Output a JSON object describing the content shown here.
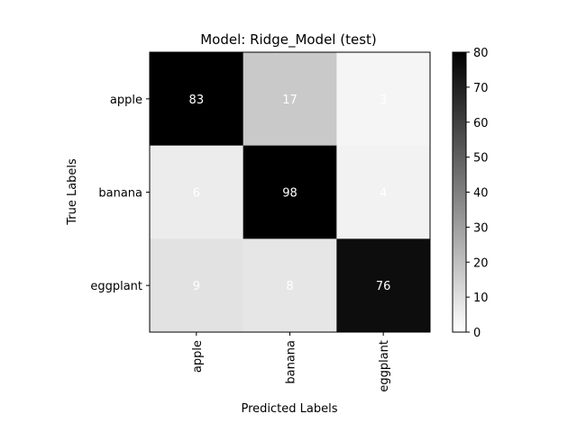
{
  "chart_data": {
    "type": "heatmap",
    "title": "Model: Ridge_Model (test)",
    "xlabel": "Predicted Labels",
    "ylabel": "True Labels",
    "x_categories": [
      "apple",
      "banana",
      "eggplant"
    ],
    "y_categories": [
      "apple",
      "banana",
      "eggplant"
    ],
    "values": [
      [
        83,
        17,
        3
      ],
      [
        6,
        98,
        4
      ],
      [
        9,
        8,
        76
      ]
    ],
    "colorbar": {
      "min": 0,
      "max": 80,
      "ticks": [
        0,
        10,
        20,
        30,
        40,
        50,
        60,
        70,
        80
      ],
      "colormap": "Greys"
    },
    "annotation_color": "#ffffff",
    "grid": false
  }
}
